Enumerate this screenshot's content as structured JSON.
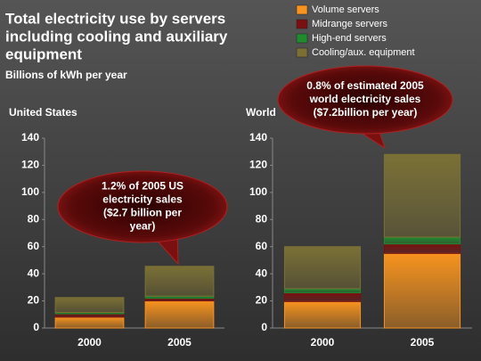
{
  "title": [
    "Total electricity use by servers",
    "including cooling and auxiliary",
    "equipment"
  ],
  "subtitle": "Billions of kWh per year",
  "chart_data": [
    {
      "type": "stacked-bar",
      "title": "United States",
      "categories": [
        "2000",
        "2005"
      ],
      "series": [
        {
          "name": "Volume servers",
          "color": "#f7931e",
          "values": [
            8,
            20
          ]
        },
        {
          "name": "Midrange servers",
          "color": "#7a1010",
          "values": [
            2.5,
            2
          ]
        },
        {
          "name": "High-end servers",
          "color": "#1f8a2e",
          "values": [
            1,
            1.5
          ]
        },
        {
          "name": "Cooling/aux. equipment",
          "color": "#7a7035",
          "values": [
            11,
            22
          ]
        }
      ],
      "ylim": [
        0,
        140
      ],
      "yticks": [
        0,
        20,
        40,
        60,
        80,
        100,
        120,
        140
      ],
      "annotation": [
        "1.2% of 2005 US",
        "electricity sales",
        "($2.7 billion per",
        "year)"
      ]
    },
    {
      "type": "stacked-bar",
      "title": "World",
      "categories": [
        "2000",
        "2005"
      ],
      "series": [
        {
          "name": "Volume servers",
          "color": "#f7931e",
          "values": [
            19.5,
            55
          ]
        },
        {
          "name": "Midrange servers",
          "color": "#7a1010",
          "values": [
            6.5,
            7
          ]
        },
        {
          "name": "High-end servers",
          "color": "#1f8a2e",
          "values": [
            3,
            5
          ]
        },
        {
          "name": "Cooling/aux. equipment",
          "color": "#7a7035",
          "values": [
            31,
            61
          ]
        }
      ],
      "ylim": [
        0,
        140
      ],
      "yticks": [
        0,
        20,
        40,
        60,
        80,
        100,
        120,
        140
      ],
      "annotation": [
        "0.8% of estimated 2005",
        "world electricity sales",
        "($7.2billion per year)"
      ]
    }
  ]
}
